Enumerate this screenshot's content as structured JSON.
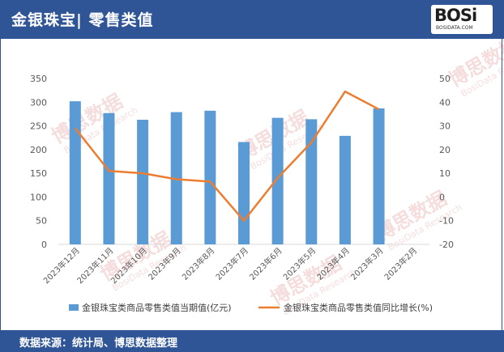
{
  "header": {
    "title": "金银珠宝| 零售类值"
  },
  "logo": {
    "main": "BOSi",
    "sub": "BOSIDATA.COM"
  },
  "footer": {
    "source": "数据来源：统计局、博思数据整理"
  },
  "watermark": {
    "text": "博思数据",
    "sub": "BosiData Research"
  },
  "colors": {
    "bar": "#5b9bd5",
    "line": "#ed7d31",
    "header": "#2f5597"
  },
  "chart_data": {
    "type": "bar",
    "categories": [
      "2023年12月",
      "2023年11月",
      "2023年10月",
      "2023年9月",
      "2023年8月",
      "2023年7月",
      "2023年6月",
      "2023年5月",
      "2023年4月",
      "2023年3月",
      "2023年2月"
    ],
    "series": [
      {
        "name": "金银珠宝类商品零售类值当期值(亿元)",
        "type": "bar",
        "axis": "left",
        "values": [
          302,
          277,
          263,
          279,
          282,
          216,
          267,
          264,
          229,
          287,
          null
        ]
      },
      {
        "name": "金银珠宝类商品零售类值同比增长(%)",
        "type": "line",
        "axis": "right",
        "values": [
          29,
          11,
          10,
          7.5,
          6.5,
          -10,
          8,
          23,
          44.5,
          37,
          null
        ]
      }
    ],
    "ylim_left": [
      0,
      350
    ],
    "yticks_left": [
      "0",
      "50",
      "100",
      "150",
      "200",
      "250",
      "300",
      "350"
    ],
    "ylim_right": [
      -20,
      50
    ],
    "yticks_right": [
      "-20",
      "-10",
      "0",
      "10",
      "20",
      "30",
      "40",
      "50"
    ],
    "grid": false,
    "legend": "bottom"
  }
}
